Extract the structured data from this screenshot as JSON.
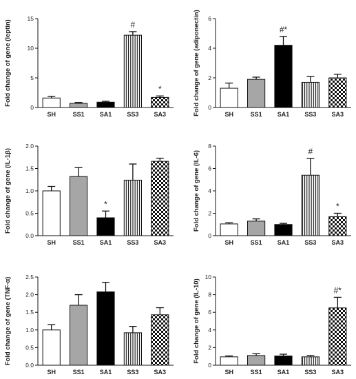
{
  "colors": {
    "SH": "#ffffff",
    "SS1": "#a6a6a6",
    "SA1": "#000000",
    "SS3": "vertical-stripes",
    "SA3": "checkered"
  },
  "chart_data": [
    {
      "type": "bar",
      "ylabel": "Fold change of gene (leptin)",
      "categories": [
        "SH",
        "SS1",
        "SA1",
        "SS3",
        "SA3"
      ],
      "values": [
        1.6,
        0.7,
        0.9,
        12.2,
        1.7
      ],
      "errors": [
        0.3,
        0.15,
        0.15,
        0.6,
        0.25
      ],
      "annotations": [
        "",
        "",
        "",
        "#",
        "*"
      ],
      "ylim": [
        0,
        15
      ],
      "yticks": [
        0,
        5,
        10,
        15
      ]
    },
    {
      "type": "bar",
      "ylabel": "Fold change of gene (adiponectin)",
      "categories": [
        "SH",
        "SS1",
        "SA1",
        "SS3",
        "SA3"
      ],
      "values": [
        1.3,
        1.9,
        4.2,
        1.7,
        2.0
      ],
      "errors": [
        0.35,
        0.15,
        0.6,
        0.4,
        0.25
      ],
      "annotations": [
        "",
        "",
        "#*",
        "",
        ""
      ],
      "ylim": [
        0,
        6
      ],
      "yticks": [
        0,
        2,
        4,
        6
      ]
    },
    {
      "type": "bar",
      "ylabel": "Fold change of gene (IL-1β)",
      "categories": [
        "SH",
        "SS1",
        "SA1",
        "SS3",
        "SA3"
      ],
      "values": [
        1.0,
        1.32,
        0.4,
        1.24,
        1.66
      ],
      "errors": [
        0.1,
        0.2,
        0.15,
        0.36,
        0.07
      ],
      "annotations": [
        "",
        "",
        "*",
        "",
        ""
      ],
      "ylim": [
        0,
        2.0
      ],
      "yticks": [
        "0.0",
        "0.5",
        "1.0",
        "1.5",
        "2.0"
      ]
    },
    {
      "type": "bar",
      "ylabel": "Fold change of gene (IL-6)",
      "categories": [
        "SH",
        "SS1",
        "SA1",
        "SS3",
        "SA3"
      ],
      "values": [
        1.05,
        1.3,
        1.0,
        5.4,
        1.7
      ],
      "errors": [
        0.1,
        0.2,
        0.1,
        1.5,
        0.3
      ],
      "annotations": [
        "",
        "",
        "",
        "#",
        "*"
      ],
      "ylim": [
        0,
        8
      ],
      "yticks": [
        0,
        2,
        4,
        6,
        8
      ]
    },
    {
      "type": "bar",
      "ylabel": "Fold change of gene (TNF-α)",
      "categories": [
        "SH",
        "SS1",
        "SA1",
        "SS3",
        "SA3"
      ],
      "values": [
        1.0,
        1.7,
        2.08,
        0.92,
        1.43
      ],
      "errors": [
        0.15,
        0.3,
        0.27,
        0.18,
        0.2
      ],
      "annotations": [
        "",
        "",
        "",
        "",
        ""
      ],
      "ylim": [
        0,
        2.5
      ],
      "yticks": [
        "0.0",
        "0.5",
        "1.0",
        "1.5",
        "2.0",
        "2.5"
      ]
    },
    {
      "type": "bar",
      "ylabel": "Fold change of gene (IL-10)",
      "categories": [
        "SH",
        "SS1",
        "SA1",
        "SS3",
        "SA3"
      ],
      "values": [
        0.95,
        1.1,
        1.05,
        0.95,
        6.5
      ],
      "errors": [
        0.1,
        0.2,
        0.2,
        0.15,
        1.2
      ],
      "annotations": [
        "",
        "",
        "",
        "",
        "#*"
      ],
      "ylim": [
        0,
        10
      ],
      "yticks": [
        0,
        2,
        4,
        6,
        8,
        10
      ]
    }
  ]
}
